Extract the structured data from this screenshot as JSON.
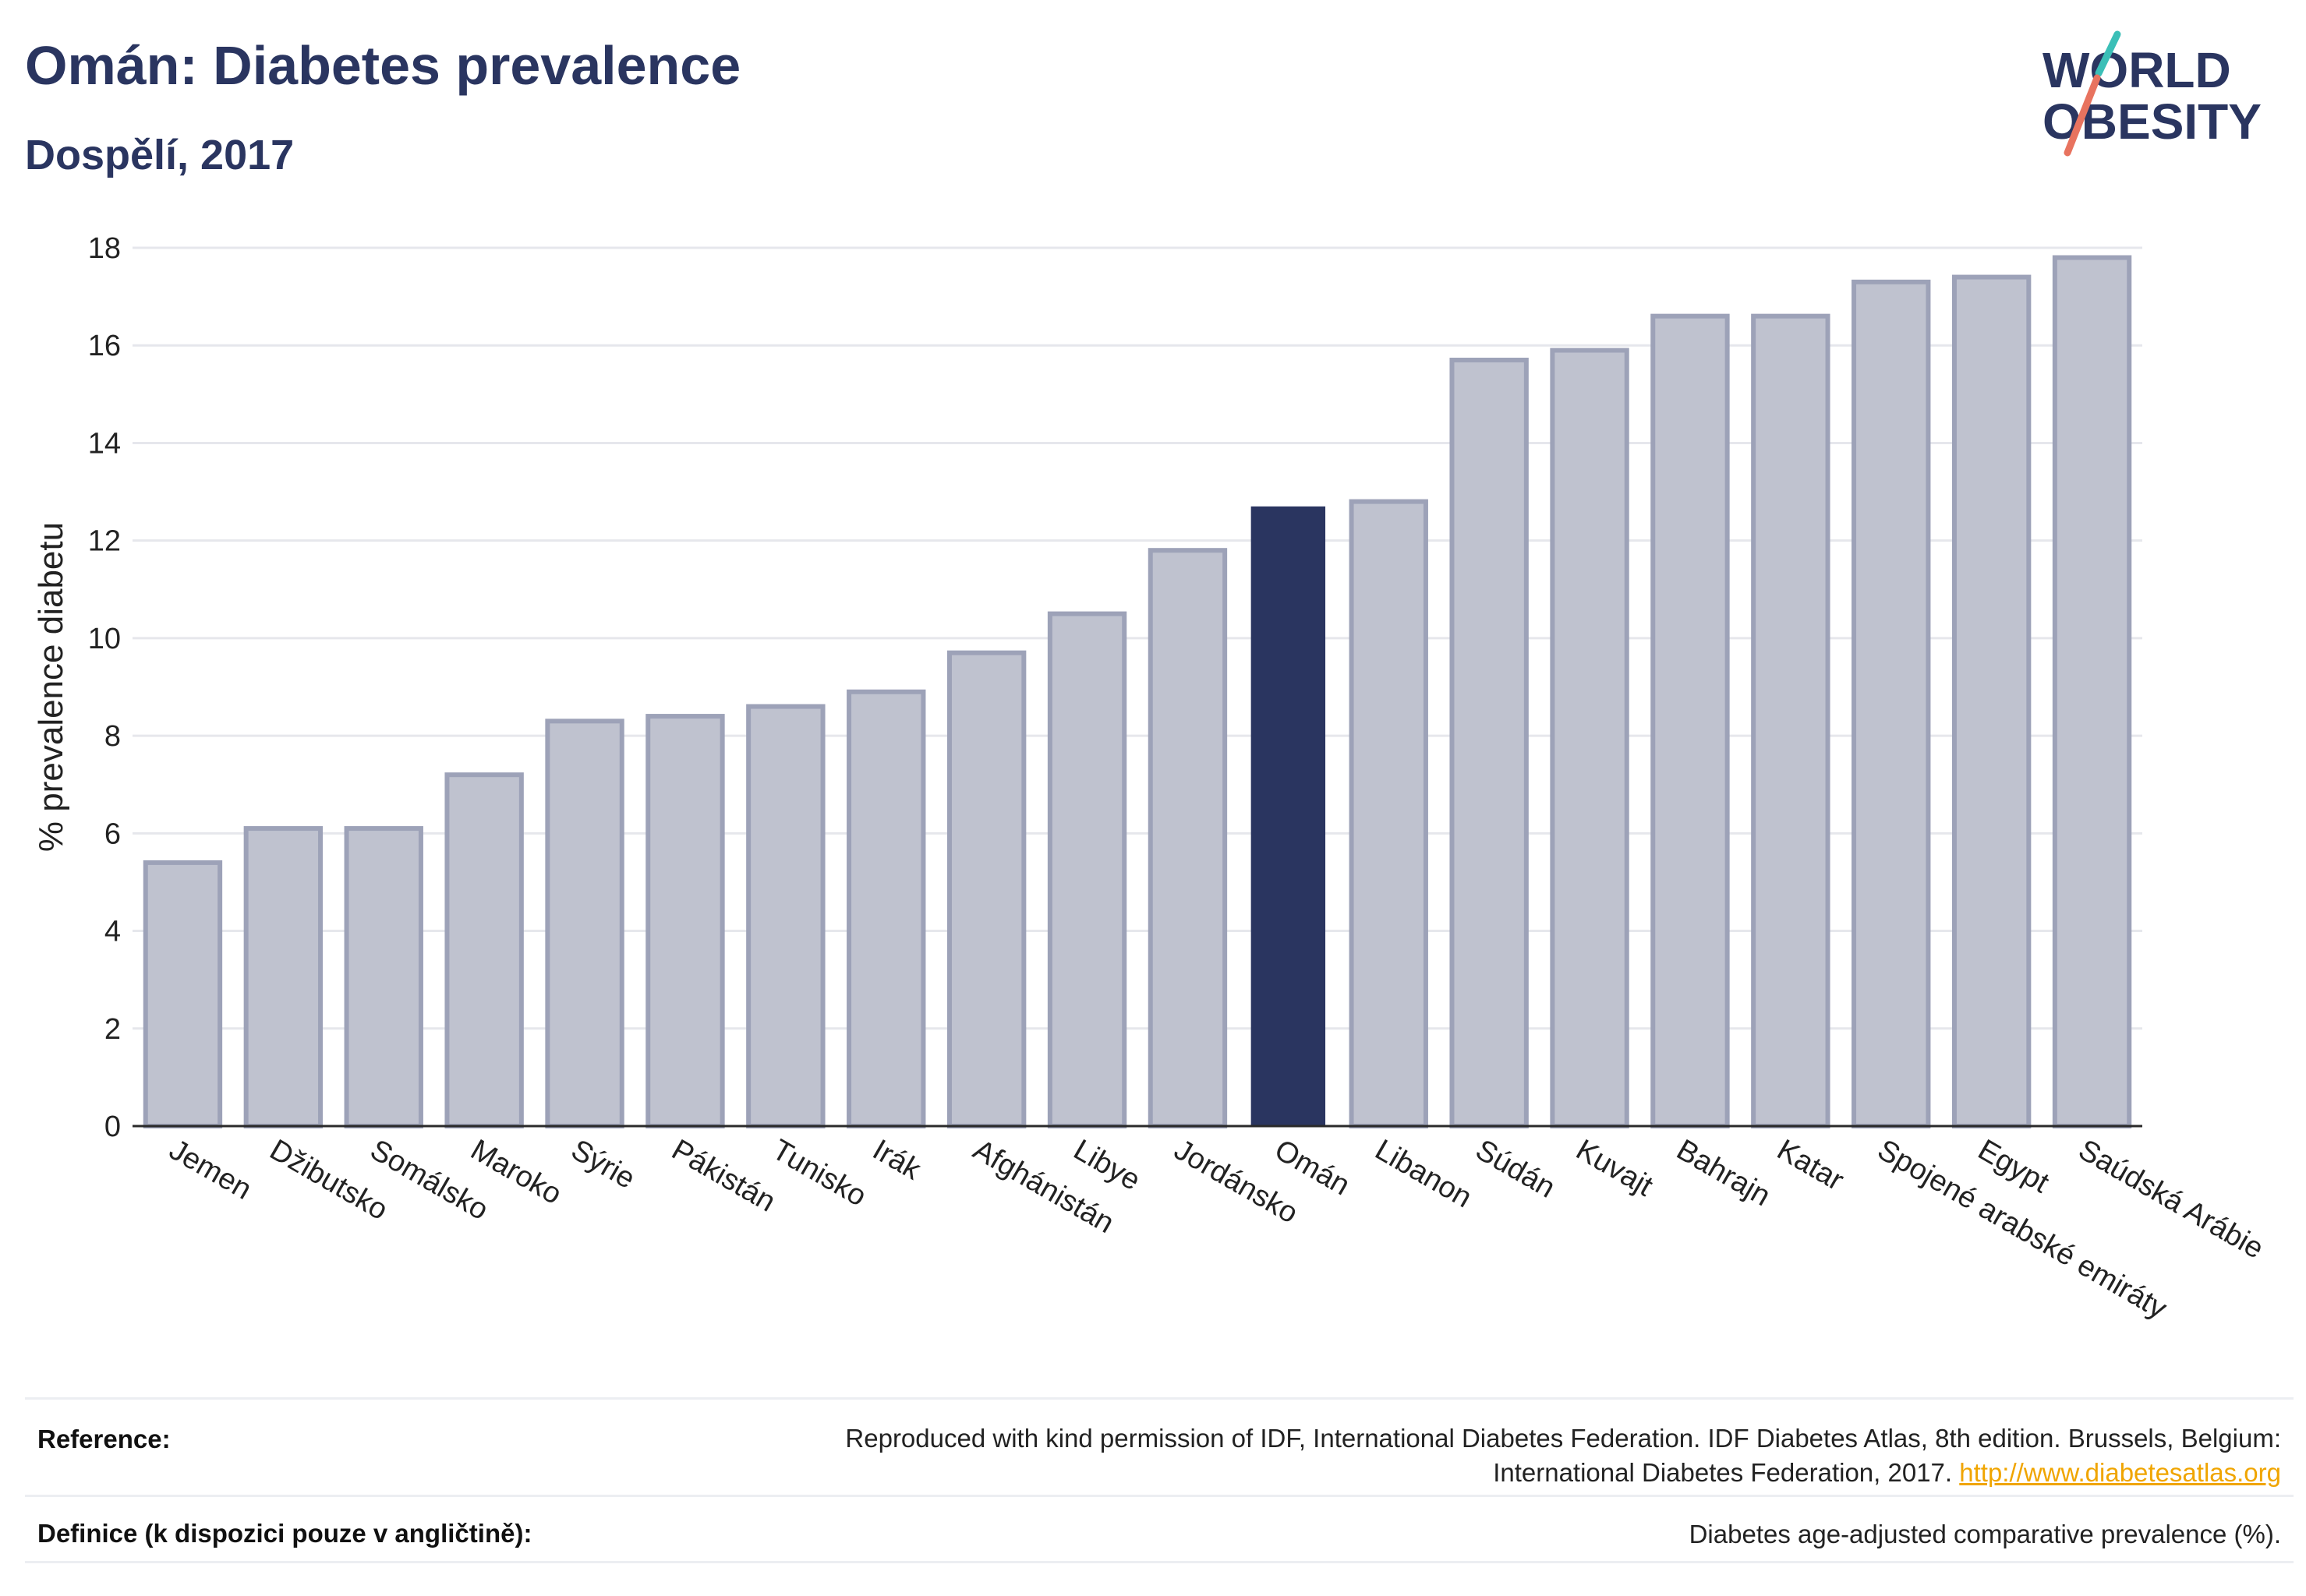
{
  "header": {
    "title": "Omán: Diabetes prevalence",
    "subtitle": "Dospělí, 2017"
  },
  "logo": {
    "line1": "WORLD",
    "line2": "OBESITY",
    "accent_teal": "#3bbfb7",
    "accent_coral": "#e8735f",
    "text_color": "#2a3560"
  },
  "colors": {
    "bar_default": "#bfc2cf",
    "bar_default_border": "#9da2b8",
    "bar_highlight": "#2a3560",
    "grid": "#e6e7ec"
  },
  "chart_data": {
    "type": "bar",
    "ylabel": "% prevalence diabetu",
    "xlabel": "",
    "ylim": [
      0,
      18
    ],
    "yticks": [
      0,
      2,
      4,
      6,
      8,
      10,
      12,
      14,
      16,
      18
    ],
    "grid": true,
    "highlight": "Omán",
    "categories": [
      "Jemen",
      "Džibutsko",
      "Somálsko",
      "Maroko",
      "Sýrie",
      "Pákistán",
      "Tunisko",
      "Irák",
      "Afghánistán",
      "Libye",
      "Jordánsko",
      "Omán",
      "Libanon",
      "Súdán",
      "Kuvajt",
      "Bahrajn",
      "Katar",
      "Spojené arabské emiráty",
      "Egypt",
      "Saúdská Arábie"
    ],
    "values": [
      5.4,
      6.1,
      6.1,
      7.2,
      8.3,
      8.4,
      8.6,
      8.9,
      9.7,
      10.5,
      11.8,
      12.7,
      12.8,
      15.7,
      15.9,
      16.6,
      16.6,
      17.3,
      17.4,
      17.8
    ]
  },
  "footer": {
    "reference_label": "Reference:",
    "reference_line1": "Reproduced with kind permission of IDF, International Diabetes Federation. IDF Diabetes Atlas, 8th edition. Brussels, Belgium:",
    "reference_line2": "International Diabetes Federation, 2017.",
    "reference_link": "http://www.diabetesatlas.org",
    "definition_label": "Definice (k dispozici pouze v angličtině):",
    "definition_text": "Diabetes age-adjusted comparative prevalence (%)."
  }
}
